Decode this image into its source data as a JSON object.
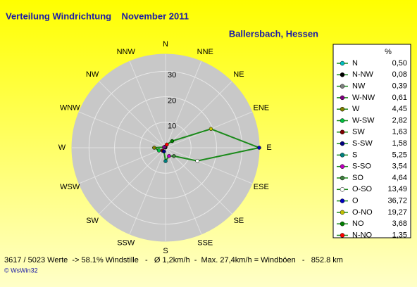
{
  "chart_data": {
    "type": "radar",
    "title": "Verteilung Windrichtung    November 2011",
    "subtitle": "Ballersbach, Hessen",
    "directions": [
      "N",
      "NNE",
      "NE",
      "ENE",
      "E",
      "ESE",
      "SE",
      "SSE",
      "S",
      "SSW",
      "SW",
      "WSW",
      "W",
      "WNW",
      "NW",
      "NNW"
    ],
    "categories": [
      "N",
      "N-NW",
      "NW",
      "W-NW",
      "W",
      "W-SW",
      "SW",
      "S-SW",
      "S",
      "S-SO",
      "SO",
      "O-SO",
      "O",
      "O-NO",
      "NO",
      "N-NO"
    ],
    "values": [
      0.5,
      0.08,
      0.39,
      0.61,
      4.45,
      2.82,
      1.63,
      1.58,
      5.25,
      3.54,
      4.64,
      13.49,
      36.72,
      19.27,
      3.68,
      1.35
    ],
    "value_labels": [
      "0,50",
      "0,08",
      "0,39",
      "0,61",
      "4,45",
      "2,82",
      "1,63",
      "1,58",
      "5,25",
      "3,54",
      "4,64",
      "13,49",
      "36,72",
      "19,27",
      "3,68",
      "1,35"
    ],
    "colors": [
      "#00c0c0",
      "#000000",
      "#808080",
      "#800080",
      "#808000",
      "#00c040",
      "#800000",
      "#000080",
      "#008080",
      "#c000c0",
      "#408040",
      "#ffffff",
      "#0000c0",
      "#c0c000",
      "#008000",
      "#ff0000"
    ],
    "line_color": "#1a8a1a",
    "values_header": "%",
    "rlim": [
      0,
      36.72
    ],
    "rticks": [
      10,
      20,
      30
    ],
    "footer": "3617 / 5023 Werte  -> 58.1% Windstille   -   Ø 1,2km/h  -  Max. 27,4km/h = Windböen   -   852.8 km",
    "credit": "© WsWin32"
  }
}
